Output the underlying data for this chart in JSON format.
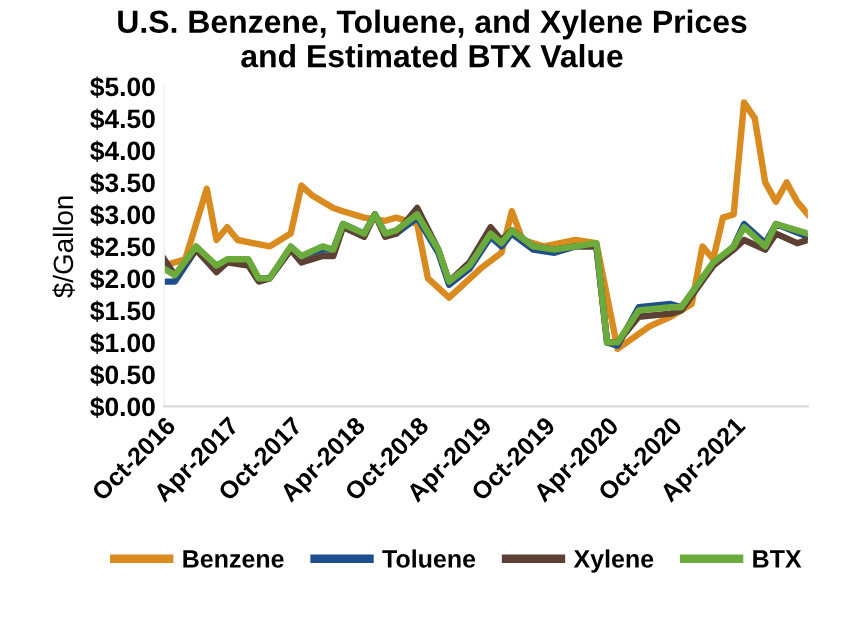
{
  "chart_data": {
    "type": "line",
    "title": "U.S. Benzene, Toluene, and Xylene Prices\nand Estimated BTX Value",
    "ylabel": "$/Gallon",
    "xlim": [
      "2016-10",
      "2021-11"
    ],
    "xticks": [
      {
        "value": "2016-10",
        "label": "Oct-2016"
      },
      {
        "value": "2017-04",
        "label": "Apr-2017"
      },
      {
        "value": "2017-10",
        "label": "Oct-2017"
      },
      {
        "value": "2018-04",
        "label": "Apr-2018"
      },
      {
        "value": "2018-10",
        "label": "Oct-2018"
      },
      {
        "value": "2019-04",
        "label": "Apr-2019"
      },
      {
        "value": "2019-10",
        "label": "Oct-2019"
      },
      {
        "value": "2020-04",
        "label": "Apr-2020"
      },
      {
        "value": "2020-10",
        "label": "Oct-2020"
      },
      {
        "value": "2021-04",
        "label": "Apr-2021"
      }
    ],
    "ylim": [
      0,
      5
    ],
    "yticks": [
      {
        "value": 0,
        "label": "$0.00"
      },
      {
        "value": 0.5,
        "label": "$0.50"
      },
      {
        "value": 1,
        "label": "$1.00"
      },
      {
        "value": 1.5,
        "label": "$1.50"
      },
      {
        "value": 2,
        "label": "$2.00"
      },
      {
        "value": 2.5,
        "label": "$2.50"
      },
      {
        "value": 3,
        "label": "$3.00"
      },
      {
        "value": 3.5,
        "label": "$3.50"
      },
      {
        "value": 4,
        "label": "$4.00"
      },
      {
        "value": 4.5,
        "label": "$4.50"
      },
      {
        "value": 5,
        "label": "$5.00"
      }
    ],
    "grid": false,
    "legend": "bottom",
    "marker": "none",
    "line_style": "solid",
    "series": [
      {
        "name": "Benzene",
        "color": "#d98b1f",
        "x": [
          "2016-10",
          "2016-12",
          "2017-02",
          "2017-03",
          "2017-04",
          "2017-05",
          "2017-08",
          "2017-10",
          "2017-11",
          "2017-12",
          "2018-02",
          "2018-03",
          "2018-05",
          "2018-07",
          "2018-08",
          "2018-10",
          "2018-11",
          "2019-01",
          "2019-04",
          "2019-06",
          "2019-07",
          "2019-08",
          "2019-10",
          "2020-01",
          "2020-03",
          "2020-05",
          "2020-08",
          "2020-10",
          "2020-12",
          "2021-01",
          "2021-02",
          "2021-03",
          "2021-04",
          "2021-05",
          "2021-06",
          "2021-07",
          "2021-08",
          "2021-09",
          "2021-10",
          "2021-11"
        ],
        "values": [
          2.2,
          2.3,
          3.4,
          2.6,
          2.8,
          2.6,
          2.5,
          2.7,
          3.45,
          3.3,
          3.1,
          3.05,
          2.95,
          2.9,
          2.95,
          2.85,
          2.0,
          1.7,
          2.15,
          2.4,
          3.05,
          2.6,
          2.5,
          2.6,
          2.55,
          0.9,
          1.25,
          1.4,
          1.6,
          2.5,
          2.3,
          2.95,
          3.0,
          4.75,
          4.5,
          3.5,
          3.2,
          3.5,
          3.2,
          3.0
        ]
      },
      {
        "name": "Toluene",
        "color": "#1f4e8c",
        "x": [
          "2016-10",
          "2016-11",
          "2017-01",
          "2017-03",
          "2017-04",
          "2017-06",
          "2017-07",
          "2017-08",
          "2017-10",
          "2017-11",
          "2018-01",
          "2018-02",
          "2018-03",
          "2018-05",
          "2018-06",
          "2018-07",
          "2018-08",
          "2018-10",
          "2018-12",
          "2019-01",
          "2019-03",
          "2019-05",
          "2019-06",
          "2019-07",
          "2019-09",
          "2019-11",
          "2020-01",
          "2020-03",
          "2020-04",
          "2020-05",
          "2020-07",
          "2020-10",
          "2020-11",
          "2021-02",
          "2021-04",
          "2021-05",
          "2021-07",
          "2021-08",
          "2021-11"
        ],
        "values": [
          1.95,
          1.95,
          2.45,
          2.15,
          2.25,
          2.25,
          2.0,
          2.0,
          2.45,
          2.35,
          2.45,
          2.45,
          2.85,
          2.7,
          3.0,
          2.7,
          2.7,
          2.95,
          2.4,
          1.9,
          2.15,
          2.65,
          2.5,
          2.7,
          2.45,
          2.4,
          2.5,
          2.5,
          1.0,
          0.95,
          1.55,
          1.6,
          1.55,
          2.2,
          2.5,
          2.85,
          2.55,
          2.85,
          2.65
        ]
      },
      {
        "name": "Xylene",
        "color": "#5c4033",
        "x": [
          "2016-10",
          "2016-11",
          "2017-01",
          "2017-03",
          "2017-04",
          "2017-06",
          "2017-07",
          "2017-08",
          "2017-10",
          "2017-11",
          "2018-01",
          "2018-02",
          "2018-03",
          "2018-05",
          "2018-06",
          "2018-07",
          "2018-08",
          "2018-10",
          "2018-12",
          "2019-01",
          "2019-03",
          "2019-05",
          "2019-06",
          "2019-07",
          "2019-09",
          "2019-11",
          "2020-01",
          "2020-03",
          "2020-04",
          "2020-05",
          "2020-07",
          "2020-10",
          "2020-11",
          "2021-02",
          "2021-04",
          "2021-05",
          "2021-07",
          "2021-08",
          "2021-10",
          "2021-11"
        ],
        "values": [
          2.3,
          2.05,
          2.45,
          2.1,
          2.25,
          2.2,
          1.95,
          2.0,
          2.45,
          2.25,
          2.35,
          2.35,
          2.8,
          2.65,
          3.0,
          2.65,
          2.7,
          3.1,
          2.45,
          1.95,
          2.25,
          2.8,
          2.6,
          2.75,
          2.5,
          2.45,
          2.5,
          2.5,
          1.0,
          1.0,
          1.4,
          1.45,
          1.5,
          2.2,
          2.45,
          2.6,
          2.45,
          2.7,
          2.55,
          2.6
        ]
      },
      {
        "name": "BTX",
        "color": "#6aab3c",
        "x": [
          "2016-10",
          "2016-11",
          "2017-01",
          "2017-03",
          "2017-04",
          "2017-06",
          "2017-07",
          "2017-08",
          "2017-10",
          "2017-11",
          "2018-01",
          "2018-02",
          "2018-03",
          "2018-05",
          "2018-06",
          "2018-07",
          "2018-08",
          "2018-10",
          "2018-12",
          "2019-01",
          "2019-03",
          "2019-05",
          "2019-06",
          "2019-07",
          "2019-09",
          "2019-11",
          "2020-01",
          "2020-03",
          "2020-04",
          "2020-05",
          "2020-07",
          "2020-10",
          "2020-11",
          "2021-02",
          "2021-04",
          "2021-05",
          "2021-07",
          "2021-08",
          "2021-11"
        ],
        "values": [
          2.15,
          2.05,
          2.5,
          2.2,
          2.3,
          2.3,
          2.0,
          2.0,
          2.5,
          2.35,
          2.5,
          2.45,
          2.85,
          2.7,
          3.0,
          2.7,
          2.75,
          3.0,
          2.45,
          1.95,
          2.2,
          2.7,
          2.55,
          2.75,
          2.5,
          2.45,
          2.5,
          2.55,
          1.0,
          1.0,
          1.5,
          1.55,
          1.55,
          2.25,
          2.5,
          2.8,
          2.5,
          2.85,
          2.7
        ]
      }
    ]
  }
}
